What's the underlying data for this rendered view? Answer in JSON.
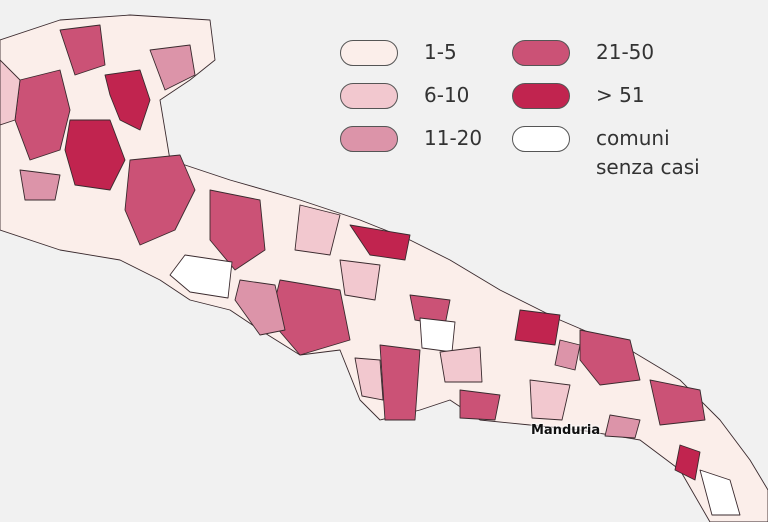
{
  "legend": {
    "items": [
      {
        "label": "1-5",
        "color": "#fbeeea"
      },
      {
        "label": "6-10",
        "color": "#f2c8cf"
      },
      {
        "label": "11-20",
        "color": "#dc94a9"
      },
      {
        "label": "21-50",
        "color": "#cb5276"
      },
      {
        "label": "> 51",
        "color": "#c1244f"
      },
      {
        "label": "comuni senza casi",
        "color": "#ffffff"
      }
    ]
  },
  "map": {
    "labels": [
      {
        "text": "Manduria"
      }
    ]
  }
}
